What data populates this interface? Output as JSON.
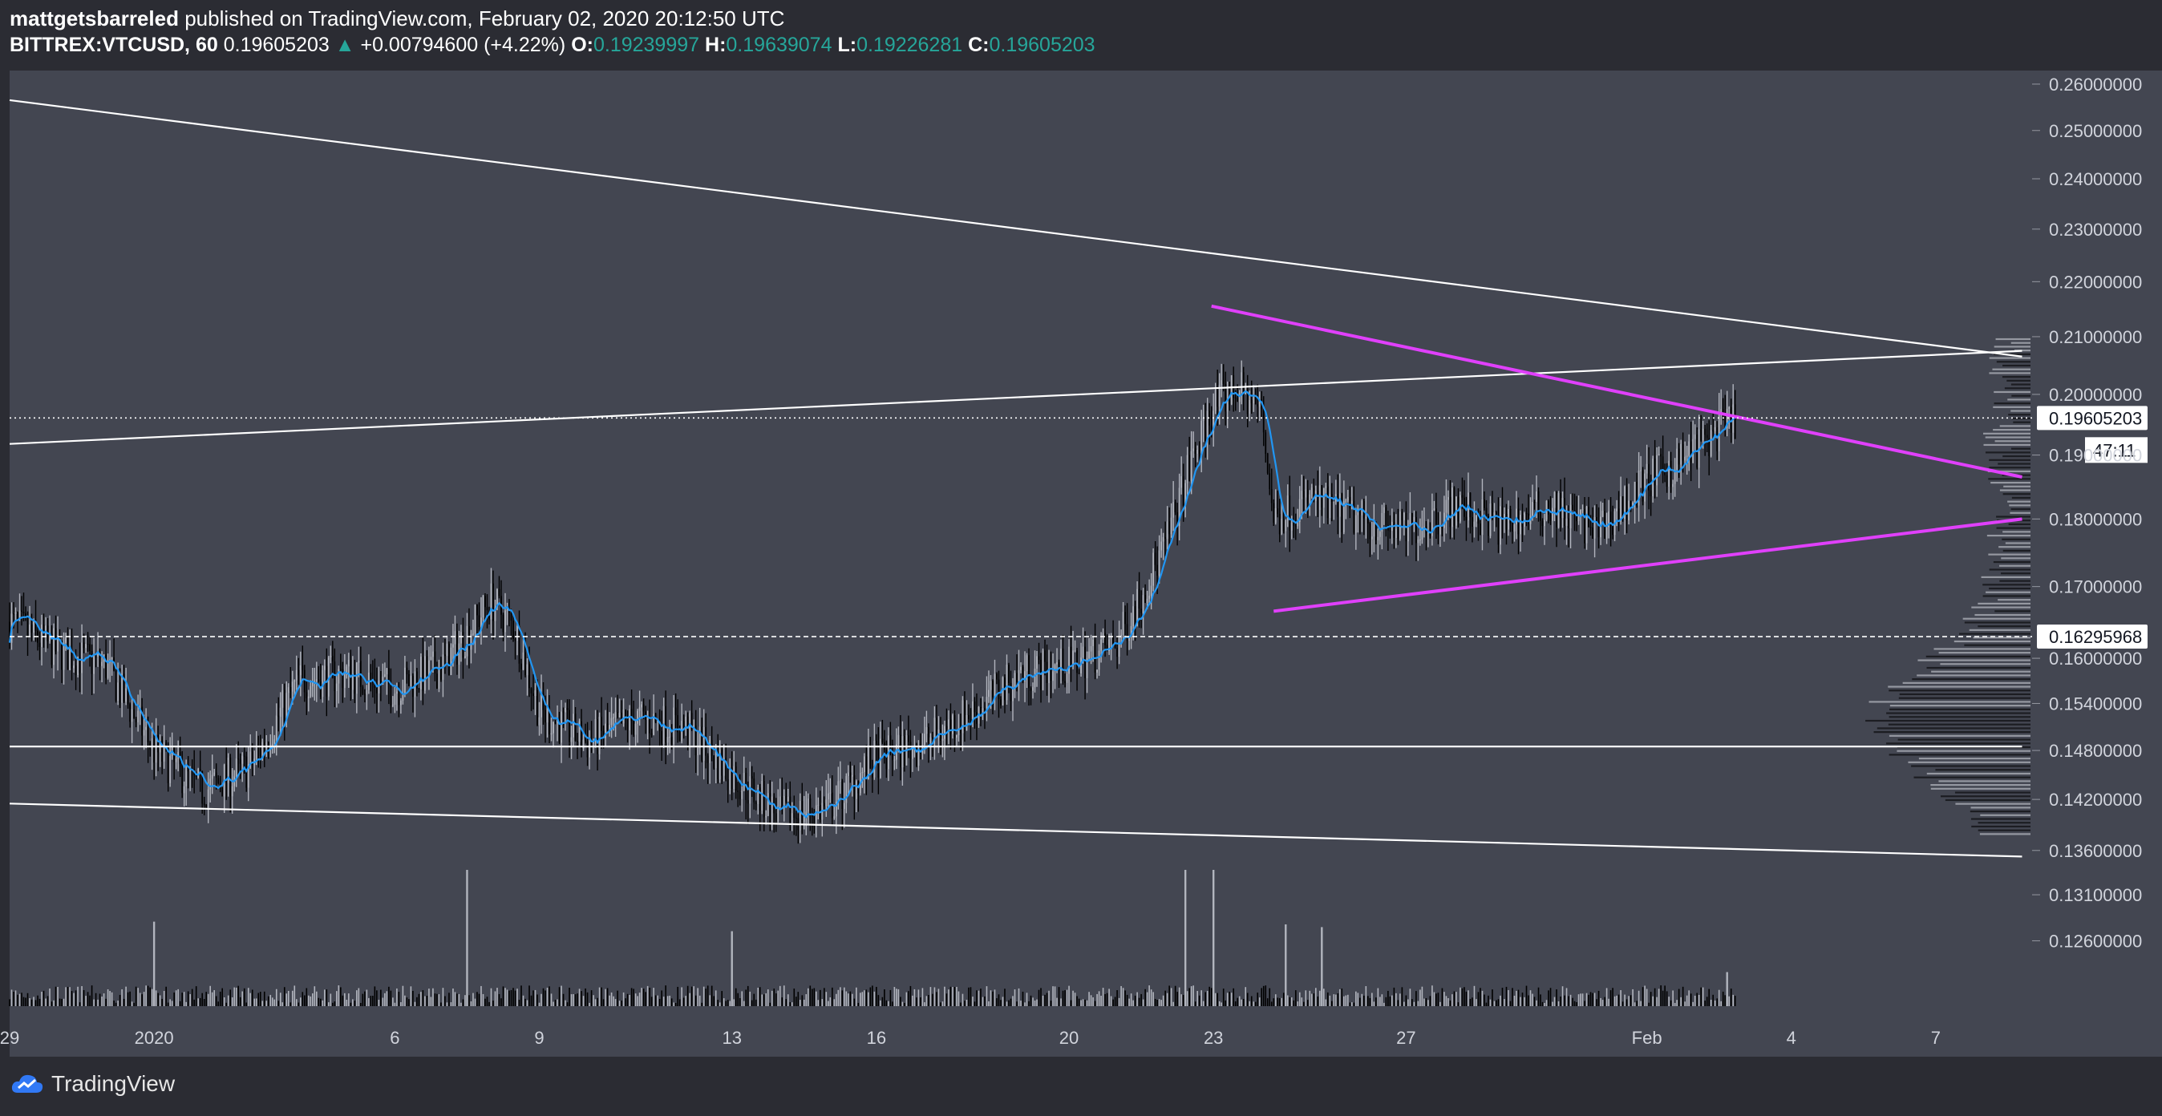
{
  "header": {
    "author": "mattgetsbarreled",
    "published_text": "published on TradingView.com, February 02, 2020 20:12:50 UTC",
    "symbol": "BITTREX:VTCUSD, 60",
    "last": "0.19605203",
    "change_arrow": "▲",
    "change": "+0.00794600 (+4.22%)",
    "o_label": "O:",
    "o_value": "0.19239997",
    "h_label": "H:",
    "h_value": "0.19639074",
    "l_label": "L:",
    "l_value": "0.19226281",
    "c_label": "C:",
    "c_value": "0.19605203"
  },
  "footer": {
    "brand": "TradingView"
  },
  "colors": {
    "background": "#2b2c33",
    "pane": "#434651",
    "candle_up": "#b2b5be",
    "candle_down": "#000000",
    "ma_line": "#2196f3",
    "trendline": "#ffffff",
    "triangle": "#e040fb",
    "accent_up": "#26a69a"
  },
  "chart_data": {
    "type": "candlestick",
    "y_scale": "log",
    "ylim": [
      0.1225,
      0.263
    ],
    "xlim": [
      "2019-12-29T00:00",
      "2020-02-09T00:00"
    ],
    "y_ticks": [
      "0.26000000",
      "0.25000000",
      "0.24000000",
      "0.23000000",
      "0.22000000",
      "0.21000000",
      "0.20000000",
      "0.19000000",
      "0.18000000",
      "0.17000000",
      "0.16000000",
      "0.15400000",
      "0.14800000",
      "0.14200000",
      "0.13600000",
      "0.13100000",
      "0.12600000"
    ],
    "x_ticks": [
      {
        "label": "29",
        "date": "2019-12-29"
      },
      {
        "label": "2020",
        "date": "2020-01-01"
      },
      {
        "label": "6",
        "date": "2020-01-06"
      },
      {
        "label": "9",
        "date": "2020-01-09"
      },
      {
        "label": "13",
        "date": "2020-01-13"
      },
      {
        "label": "16",
        "date": "2020-01-16"
      },
      {
        "label": "20",
        "date": "2020-01-20"
      },
      {
        "label": "23",
        "date": "2020-01-23"
      },
      {
        "label": "27",
        "date": "2020-01-27"
      },
      {
        "label": "Feb",
        "date": "2020-02-01"
      },
      {
        "label": "4",
        "date": "2020-02-04"
      },
      {
        "label": "7",
        "date": "2020-02-07"
      }
    ],
    "price_labels": [
      {
        "value": 0.19605203,
        "text": "0.19605203",
        "style": "dotted"
      },
      {
        "value": 0.16295968,
        "text": "0.16295968",
        "style": "dashed"
      }
    ],
    "countdown": "47:11",
    "price_path": [
      {
        "t": "2019-12-29T00:00",
        "p": 0.165
      },
      {
        "t": "2019-12-30T00:00",
        "p": 0.161
      },
      {
        "t": "2019-12-31T00:00",
        "p": 0.159
      },
      {
        "t": "2020-01-01T00:00",
        "p": 0.148
      },
      {
        "t": "2020-01-02T00:00",
        "p": 0.143
      },
      {
        "t": "2020-01-03T00:00",
        "p": 0.146
      },
      {
        "t": "2020-01-04T00:00",
        "p": 0.157
      },
      {
        "t": "2020-01-05T00:00",
        "p": 0.158
      },
      {
        "t": "2020-01-06T00:00",
        "p": 0.156
      },
      {
        "t": "2020-01-07T00:00",
        "p": 0.159
      },
      {
        "t": "2020-01-08T00:00",
        "p": 0.168
      },
      {
        "t": "2020-01-08T12:00",
        "p": 0.164
      },
      {
        "t": "2020-01-09T00:00",
        "p": 0.153
      },
      {
        "t": "2020-01-10T00:00",
        "p": 0.149
      },
      {
        "t": "2020-01-11T00:00",
        "p": 0.152
      },
      {
        "t": "2020-01-12T00:00",
        "p": 0.151
      },
      {
        "t": "2020-01-13T00:00",
        "p": 0.145
      },
      {
        "t": "2020-01-14T00:00",
        "p": 0.14
      },
      {
        "t": "2020-01-15T00:00",
        "p": 0.141
      },
      {
        "t": "2020-01-16T00:00",
        "p": 0.147
      },
      {
        "t": "2020-01-17T00:00",
        "p": 0.149
      },
      {
        "t": "2020-01-18T00:00",
        "p": 0.153
      },
      {
        "t": "2020-01-19T00:00",
        "p": 0.158
      },
      {
        "t": "2020-01-20T00:00",
        "p": 0.159
      },
      {
        "t": "2020-01-21T00:00",
        "p": 0.162
      },
      {
        "t": "2020-01-22T00:00",
        "p": 0.176
      },
      {
        "t": "2020-01-22T12:00",
        "p": 0.188
      },
      {
        "t": "2020-01-23T00:00",
        "p": 0.198
      },
      {
        "t": "2020-01-23T12:00",
        "p": 0.201
      },
      {
        "t": "2020-01-24T00:00",
        "p": 0.197
      },
      {
        "t": "2020-01-24T06:00",
        "p": 0.18
      },
      {
        "t": "2020-01-25T00:00",
        "p": 0.183
      },
      {
        "t": "2020-01-26T00:00",
        "p": 0.18
      },
      {
        "t": "2020-01-27T00:00",
        "p": 0.178
      },
      {
        "t": "2020-01-28T00:00",
        "p": 0.182
      },
      {
        "t": "2020-01-29T00:00",
        "p": 0.179
      },
      {
        "t": "2020-01-30T00:00",
        "p": 0.182
      },
      {
        "t": "2020-01-31T00:00",
        "p": 0.178
      },
      {
        "t": "2020-02-01T00:00",
        "p": 0.186
      },
      {
        "t": "2020-02-01T12:00",
        "p": 0.188
      },
      {
        "t": "2020-02-02T00:00",
        "p": 0.191
      },
      {
        "t": "2020-02-02T20:00",
        "p": 0.196
      }
    ],
    "volume_spikes": [
      {
        "t": "2020-01-01T00:00",
        "v": 0.62
      },
      {
        "t": "2020-01-07T12:00",
        "v": 1.0
      },
      {
        "t": "2020-01-13T00:00",
        "v": 0.55
      },
      {
        "t": "2020-01-22T10:00",
        "v": 1.0
      },
      {
        "t": "2020-01-23T00:00",
        "v": 1.0
      },
      {
        "t": "2020-01-24T12:00",
        "v": 0.6
      },
      {
        "t": "2020-01-25T06:00",
        "v": 0.58
      },
      {
        "t": "2020-02-02T16:00",
        "v": 0.25
      }
    ],
    "trendlines": [
      {
        "name": "upper-descending-trendline",
        "color": "#ffffff",
        "from": {
          "t": "2019-12-29T00:00",
          "p": 0.2565
        },
        "to": {
          "t": "2020-02-08T19:00",
          "p": 0.2065
        }
      },
      {
        "name": "rising-trendline",
        "color": "#ffffff",
        "from": {
          "t": "2019-12-29T00:00",
          "p": 0.1918
        },
        "to": {
          "t": "2020-02-08T19:00",
          "p": 0.2075
        }
      },
      {
        "name": "horizontal-support",
        "color": "#ffffff",
        "from": {
          "t": "2019-12-29T00:00",
          "p": 0.1485
        },
        "to": {
          "t": "2020-02-08T19:00",
          "p": 0.1485
        }
      },
      {
        "name": "lower-descending-trendline",
        "color": "#ffffff",
        "from": {
          "t": "2019-12-29T00:00",
          "p": 0.1415
        },
        "to": {
          "t": "2020-02-08T19:00",
          "p": 0.1353
        }
      },
      {
        "name": "triangle-upper-line",
        "color": "#e040fb",
        "from": {
          "t": "2020-01-22T23:00",
          "p": 0.2155
        },
        "to": {
          "t": "2020-02-08T19:00",
          "p": 0.1865
        }
      },
      {
        "name": "triangle-lower-line",
        "color": "#e040fb",
        "from": {
          "t": "2020-01-24T06:00",
          "p": 0.1665
        },
        "to": {
          "t": "2020-02-08T19:00",
          "p": 0.18
        }
      }
    ]
  }
}
